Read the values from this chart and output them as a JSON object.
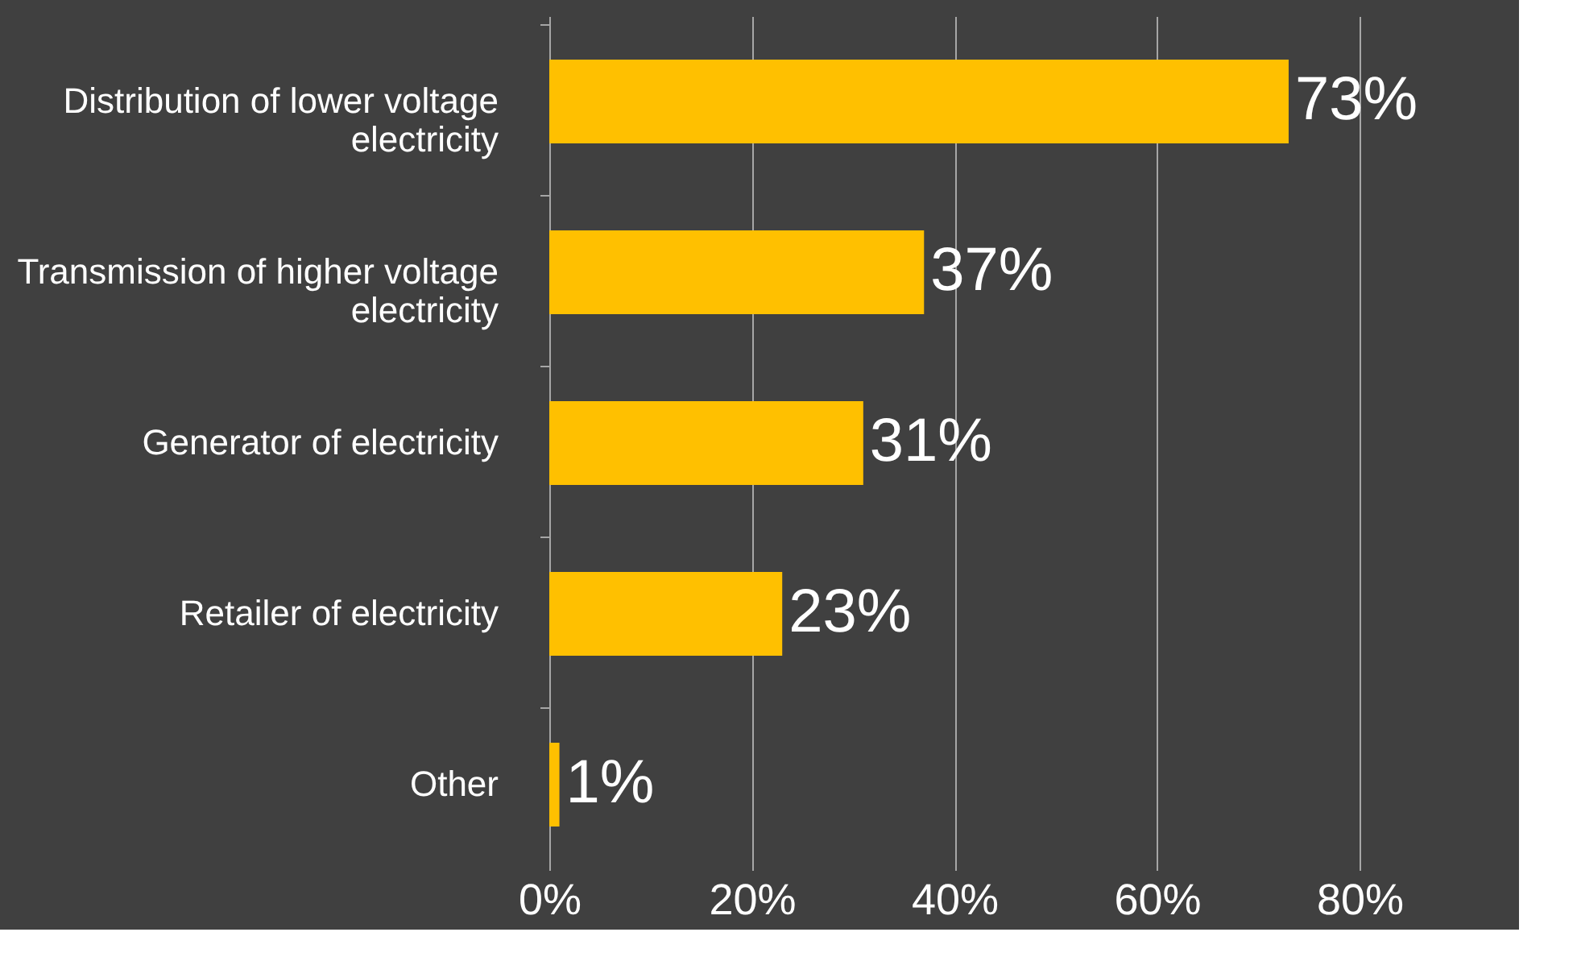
{
  "chart_data": {
    "type": "bar",
    "orientation": "horizontal",
    "categories": [
      "Distribution of lower voltage electricity",
      "Transmission of higher voltage electricity",
      "Generator of electricity",
      "Retailer of electricity",
      "Other"
    ],
    "values": [
      73,
      37,
      31,
      23,
      1
    ],
    "value_labels": [
      "73%",
      "37%",
      "31%",
      "23%",
      "1%"
    ],
    "color": "#ffc000",
    "xlim": [
      0,
      80
    ],
    "xticks": [
      {
        "value": 0,
        "label": "0%"
      },
      {
        "value": 20,
        "label": "20%"
      },
      {
        "value": 40,
        "label": "40%"
      },
      {
        "value": 60,
        "label": "60%"
      },
      {
        "value": 80,
        "label": "80%"
      }
    ],
    "grid": "x"
  }
}
